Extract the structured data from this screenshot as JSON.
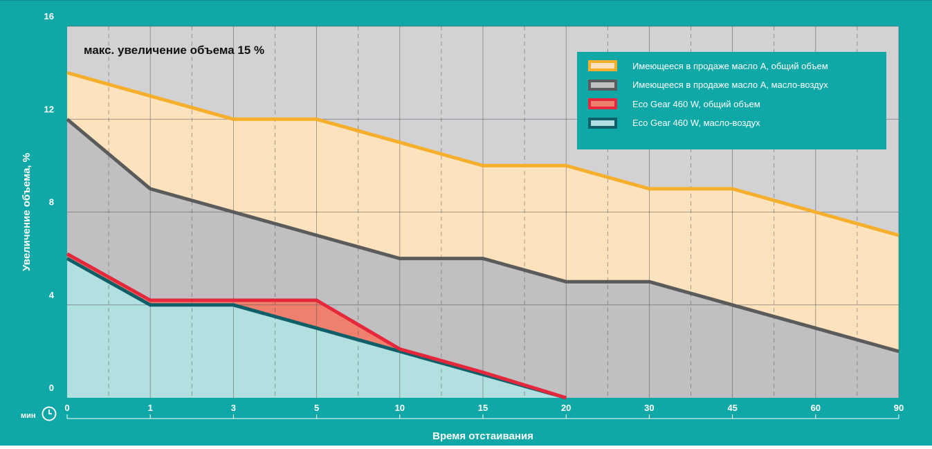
{
  "chart_data": {
    "type": "area",
    "annotation": "макс. увеличение объема 15 %",
    "ylabel": "Увеличение объема, %",
    "xlabel": "Время отстаивания",
    "x_unit": "мин",
    "categories": [
      "0",
      "1",
      "3",
      "5",
      "10",
      "15",
      "20",
      "30",
      "45",
      "60",
      "90"
    ],
    "y_ticks": [
      0,
      4,
      8,
      12,
      16
    ],
    "ylim": [
      0,
      16
    ],
    "grid": true,
    "legend_position": "top-right",
    "series": [
      {
        "name": "Имеющееся в продаже масло А, общий объем",
        "values": [
          14,
          13,
          12,
          12,
          11,
          10,
          10,
          9,
          9,
          8,
          7
        ],
        "line_color": "#f6ae2d",
        "fill_color": "#fde3bd"
      },
      {
        "name": "Имеющееся в продаже масло А, масло-воздух",
        "values": [
          12,
          9,
          8,
          7,
          6,
          6,
          5,
          5,
          4,
          3,
          2
        ],
        "line_color": "#5b5b5b",
        "fill_color": "#c0c0c3"
      },
      {
        "name": "Eco Gear 460 W, общий объем",
        "values": [
          6.2,
          4.2,
          4.2,
          4.2,
          2.1,
          1.1,
          0,
          null,
          null,
          null,
          null
        ],
        "line_color": "#e5273b",
        "fill_color": "#f0806e"
      },
      {
        "name": "Eco Gear 460 W, масло-воздух",
        "values": [
          6,
          4,
          4,
          3,
          2,
          1,
          0,
          null,
          null,
          null,
          null
        ],
        "line_color": "#0f5f68",
        "fill_color": "#b2dfe0"
      }
    ],
    "colors": {
      "background": "#d2d2d5",
      "frame": "#0fa8a6",
      "grid": "#555555"
    }
  }
}
